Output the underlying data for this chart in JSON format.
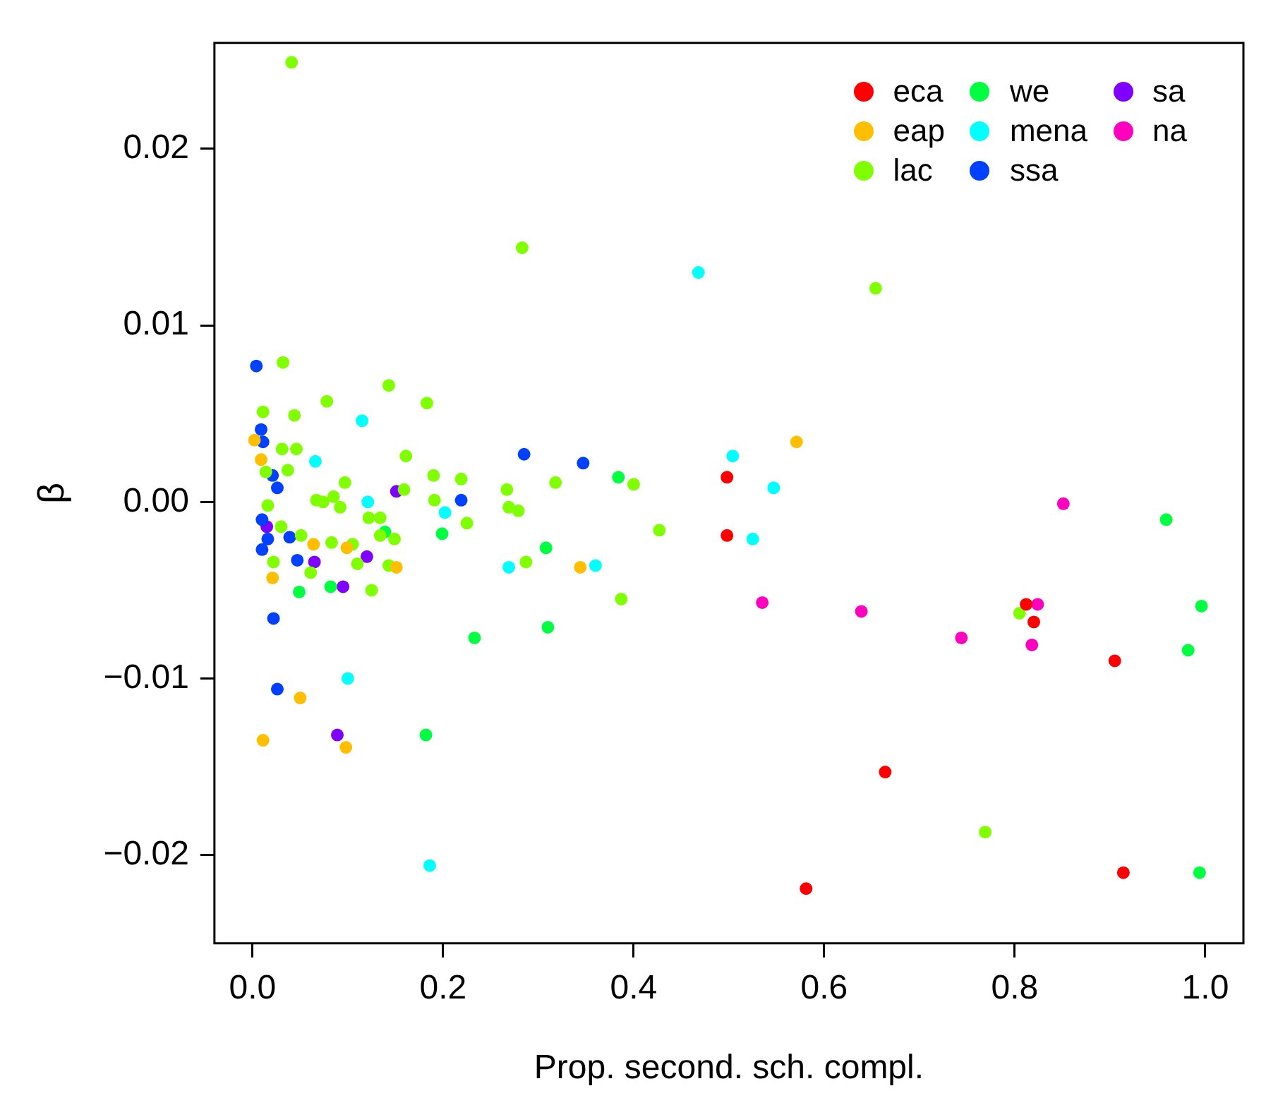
{
  "chart_data": {
    "type": "scatter",
    "xlabel": "Prop. second. sch. compl.",
    "ylabel": "β",
    "xlim": [
      -0.04,
      1.04
    ],
    "ylim": [
      -0.025,
      0.026
    ],
    "xticks": [
      {
        "value": 0,
        "label": "0.0"
      },
      {
        "value": 0.2,
        "label": "0.2"
      },
      {
        "value": 0.4,
        "label": "0.4"
      },
      {
        "value": 0.6,
        "label": "0.6"
      },
      {
        "value": 0.8,
        "label": "0.8"
      },
      {
        "value": 1.0,
        "label": "1.0"
      }
    ],
    "yticks": [
      {
        "value": -0.02,
        "label": "−0.02"
      },
      {
        "value": -0.01,
        "label": "−0.01"
      },
      {
        "value": 0,
        "label": "0.00"
      },
      {
        "value": 0.01,
        "label": "0.01"
      },
      {
        "value": 0.02,
        "label": "0.02"
      }
    ],
    "grid": false,
    "legend": "top right",
    "marker": "circle",
    "series": [
      {
        "name": "eca",
        "color": "#ff0000",
        "x": [
          0.498,
          0.498,
          0.812,
          0.82,
          0.905,
          0.664,
          0.914,
          0.581
        ],
        "values": [
          0.0014,
          -0.0019,
          -0.0058,
          -0.0068,
          -0.009,
          -0.0153,
          -0.021,
          -0.0219
        ]
      },
      {
        "name": "eap",
        "color": "#ffbf00",
        "x": [
          0.002,
          0.009,
          0.064,
          0.021,
          0.099,
          0.151,
          0.05,
          0.011,
          0.098,
          0.344,
          0.571
        ],
        "values": [
          0.0035,
          0.0024,
          -0.0024,
          -0.0043,
          -0.0026,
          -0.0037,
          -0.0111,
          -0.0135,
          -0.0139,
          -0.0037,
          0.0034
        ]
      },
      {
        "name": "lac",
        "color": "#80ff00",
        "x": [
          0.041,
          0.283,
          0.654,
          0.032,
          0.143,
          0.078,
          0.183,
          0.011,
          0.044,
          0.031,
          0.046,
          0.161,
          0.014,
          0.037,
          0.097,
          0.159,
          0.19,
          0.219,
          0.067,
          0.074,
          0.085,
          0.092,
          0.191,
          0.016,
          0.03,
          0.051,
          0.022,
          0.083,
          0.061,
          0.125,
          0.105,
          0.11,
          0.122,
          0.134,
          0.134,
          0.149,
          0.143,
          0.267,
          0.318,
          0.4,
          0.269,
          0.279,
          0.225,
          0.427,
          0.287,
          0.387,
          0.805,
          0.769
        ],
        "values": [
          0.0249,
          0.0144,
          0.0121,
          0.0079,
          0.0066,
          0.0057,
          0.0056,
          0.0051,
          0.0049,
          0.003,
          0.003,
          0.0026,
          0.0017,
          0.0018,
          0.0011,
          0.0007,
          0.0015,
          0.0013,
          0.0001,
          0.0,
          0.0003,
          -0.0003,
          0.0001,
          -0.0002,
          -0.0014,
          -0.0019,
          -0.0034,
          -0.0023,
          -0.004,
          -0.005,
          -0.0024,
          -0.0035,
          -0.0009,
          -0.0009,
          -0.0019,
          -0.0021,
          -0.0036,
          0.0007,
          0.0011,
          0.001,
          -0.0003,
          -0.0005,
          -0.0012,
          -0.0016,
          -0.0034,
          -0.0055,
          -0.0063,
          -0.0187
        ]
      },
      {
        "name": "we",
        "color": "#00ff40",
        "x": [
          0.199,
          0.049,
          0.082,
          0.139,
          0.182,
          0.384,
          0.308,
          0.233,
          0.31,
          0.959,
          0.996,
          0.982,
          0.994
        ],
        "values": [
          -0.0018,
          -0.0051,
          -0.0048,
          -0.0017,
          -0.0132,
          0.0014,
          -0.0026,
          -0.0077,
          -0.0071,
          -0.001,
          -0.0059,
          -0.0084,
          -0.021
        ]
      },
      {
        "name": "mena",
        "color": "#00ffff",
        "x": [
          0.468,
          0.115,
          0.066,
          0.121,
          0.202,
          0.1,
          0.186,
          0.504,
          0.547,
          0.525,
          0.269,
          0.36
        ],
        "values": [
          0.013,
          0.0046,
          0.0023,
          0.0,
          -0.0006,
          -0.01,
          -0.0206,
          0.0026,
          0.0008,
          -0.0021,
          -0.0037,
          -0.0036
        ]
      },
      {
        "name": "ssa",
        "color": "#0040ff",
        "x": [
          0.004,
          0.009,
          0.011,
          0.021,
          0.026,
          0.219,
          0.01,
          0.016,
          0.039,
          0.01,
          0.047,
          0.022,
          0.026,
          0.285,
          0.347
        ],
        "values": [
          0.0077,
          0.0041,
          0.0034,
          0.0015,
          0.0008,
          0.0001,
          -0.001,
          -0.0021,
          -0.002,
          -0.0027,
          -0.0033,
          -0.0066,
          -0.0106,
          0.0027,
          0.0022
        ]
      },
      {
        "name": "sa",
        "color": "#7f00ff",
        "x": [
          0.151,
          0.015,
          0.065,
          0.095,
          0.12,
          0.089
        ],
        "values": [
          0.0006,
          -0.0014,
          -0.0034,
          -0.0048,
          -0.0031,
          -0.0132
        ]
      },
      {
        "name": "na",
        "color": "#ff00bf",
        "x": [
          0.535,
          0.639,
          0.851,
          0.824,
          0.744,
          0.818
        ],
        "values": [
          -0.0057,
          -0.0062,
          -0.0001,
          -0.0058,
          -0.0077,
          -0.0081
        ]
      }
    ]
  }
}
